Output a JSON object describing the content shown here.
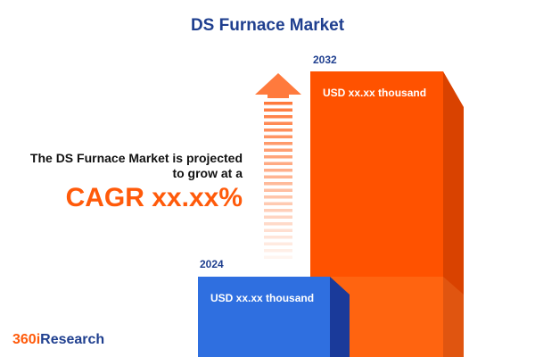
{
  "header": {
    "title": "DS Furnace Market"
  },
  "summary": {
    "line1": "The DS Furnace Market is projected",
    "line2": "to grow at a",
    "cagr": "CAGR xx.xx%"
  },
  "bars": [
    {
      "year": "2024",
      "label": "USD xx.xx thousand"
    },
    {
      "year": "2032",
      "label": "USD xx.xx thousand"
    }
  ],
  "logo": {
    "prefix": "360i",
    "suffix": "Research"
  }
}
